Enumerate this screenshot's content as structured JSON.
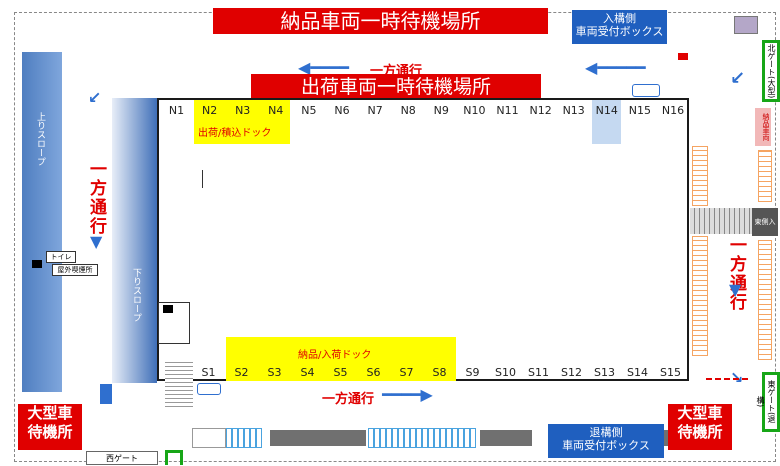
{
  "banners": {
    "delivery_wait": "納品車両一時待機場所",
    "shipping_wait": "出荷車両一時待機場所"
  },
  "reception": {
    "inbound": "入構側\n車両受付ボックス",
    "outbound": "退構側\n車両受付ボックス"
  },
  "one_way": {
    "label": "一方通行",
    "left": "一方通行",
    "right": "一方通行"
  },
  "docks_north": {
    "labels": [
      "N1",
      "N2",
      "N3",
      "N4",
      "N5",
      "N6",
      "N7",
      "N8",
      "N9",
      "N10",
      "N11",
      "N12",
      "N13",
      "N14",
      "N15",
      "N16"
    ],
    "section_label": "出荷/積込ドック",
    "highlighted": [
      "N2",
      "N3",
      "N4"
    ],
    "selected": "N14"
  },
  "docks_south": {
    "labels": [
      "S1",
      "S2",
      "S3",
      "S4",
      "S5",
      "S6",
      "S7",
      "S8",
      "S9",
      "S10",
      "S11",
      "S12",
      "S13",
      "S14",
      "S15"
    ],
    "section_label": "納品/入荷ドック",
    "highlighted": [
      "S2",
      "S3",
      "S4",
      "S5",
      "S6",
      "S7",
      "S8"
    ]
  },
  "slopes": {
    "up": "上りスロープ",
    "down": "下りスロープ"
  },
  "facilities": {
    "toilet": "トイレ",
    "smoking": "屋外喫煙所"
  },
  "wait_areas": {
    "left": "大型車\n待機所",
    "right": "大型車\n待機所"
  },
  "gates": {
    "north": "北ゲート(大型)",
    "east": "東ゲート(退構)",
    "west": "西ゲート",
    "entrance": "東側入",
    "delivery_tag": "納品車両"
  },
  "colors": {
    "banner_red": "#e00000",
    "reception_blue": "#1f5fbf",
    "dock_yellow": "#ffff00",
    "selected_dock": "#c5d9f1",
    "arrow_blue": "#2f6fcf",
    "gate_green": "#17a617"
  }
}
